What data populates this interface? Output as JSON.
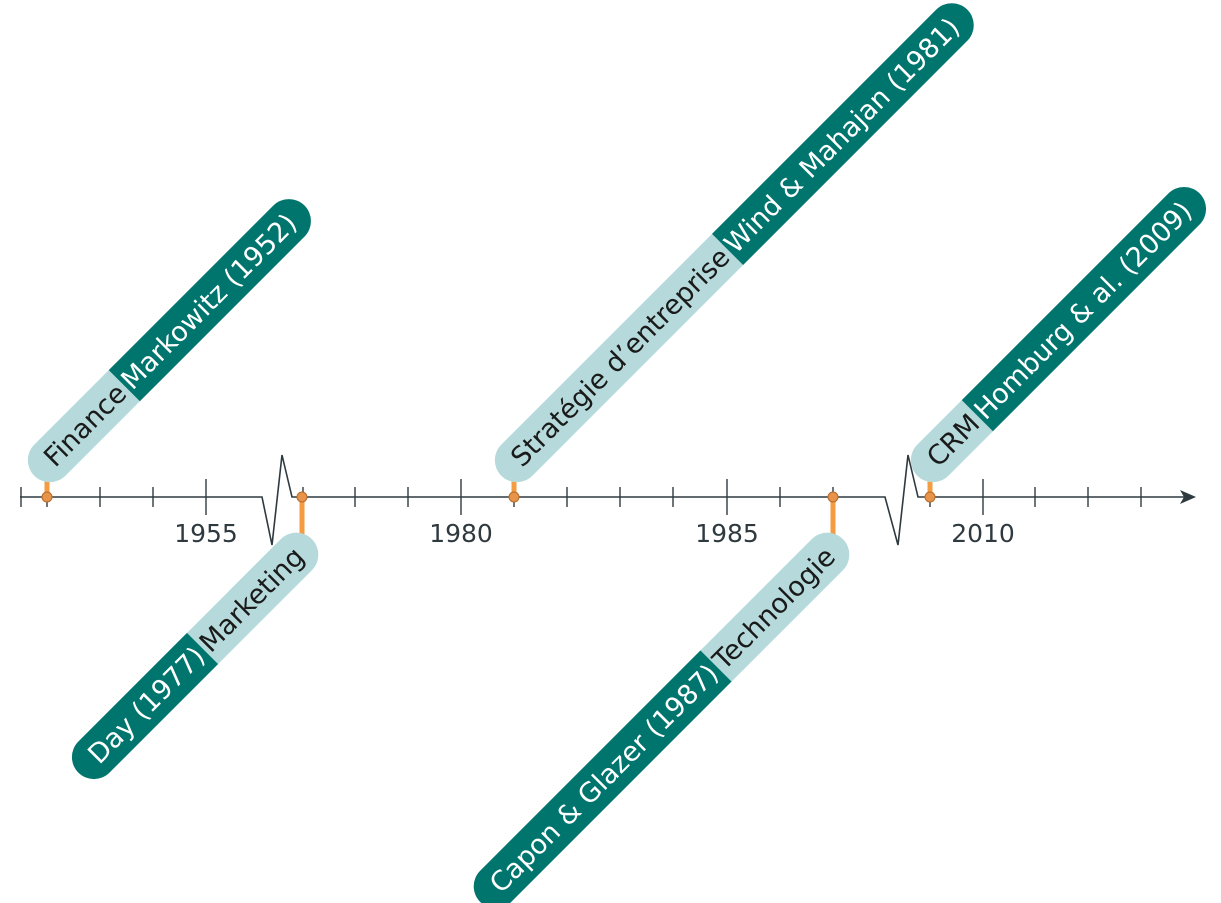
{
  "timeline": {
    "tick_labels": [
      "1955",
      "1980",
      "1985",
      "2010"
    ],
    "events": [
      {
        "category": "Finance",
        "reference": "Markowitz (1952)",
        "year": 1952,
        "side": "above"
      },
      {
        "category": "Marketing",
        "reference": "Day (1977)",
        "year": 1977,
        "side": "below"
      },
      {
        "category": "Stratégie d’entreprise",
        "reference": "Wind & Mahajan (1981)",
        "year": 1981,
        "side": "above"
      },
      {
        "category": "Technologie",
        "reference": "Capon & Glazer (1987)",
        "year": 1987,
        "side": "below"
      },
      {
        "category": "CRM",
        "reference": "Homburg & al. (2009)",
        "year": 2009,
        "side": "above"
      }
    ],
    "colors": {
      "category_pill": "#b6dadb",
      "reference_pill": "#00756e",
      "stem": "#f59b42",
      "axis": "#2f3a40"
    }
  }
}
